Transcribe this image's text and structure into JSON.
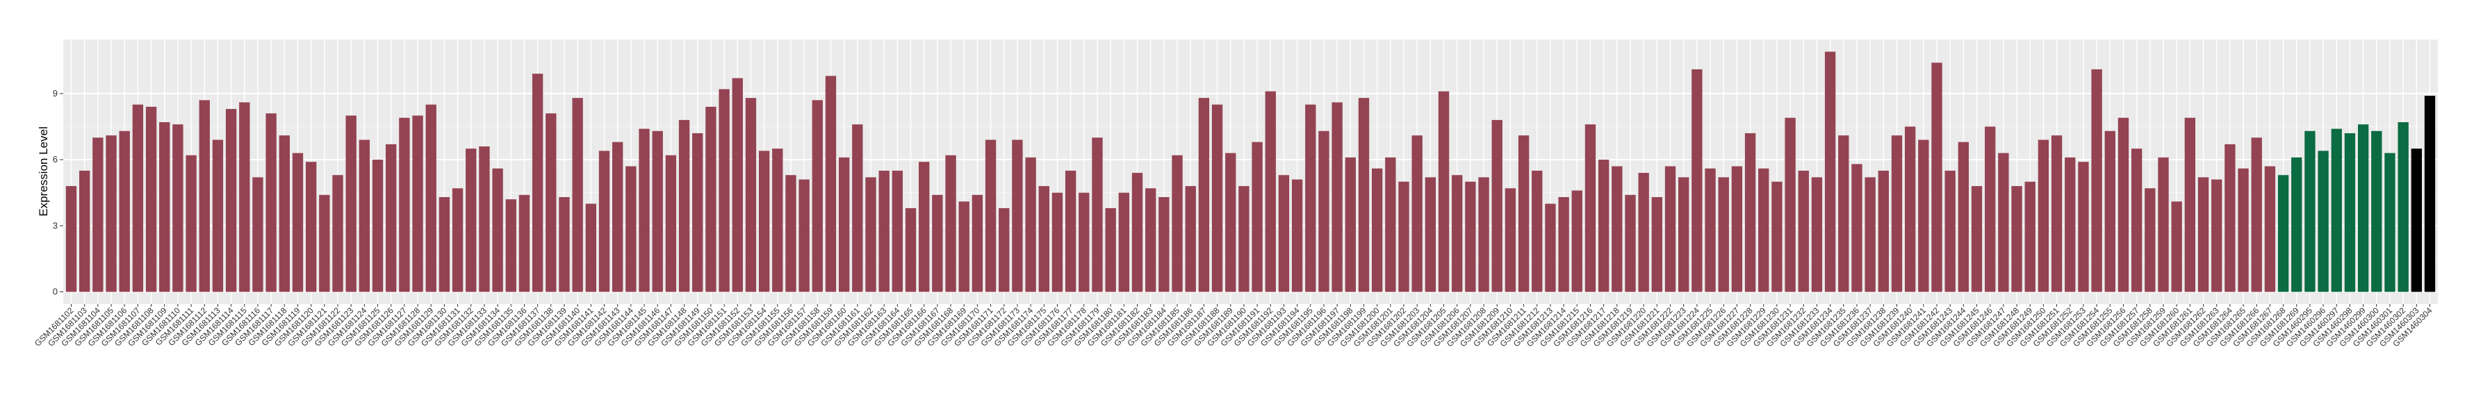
{
  "chart_data": {
    "type": "bar",
    "y_label": "Expression Level",
    "categories": [
      "GSM1681102",
      "GSM1681103",
      "GSM1681104",
      "GSM1681105",
      "GSM1681106",
      "GSM1681107",
      "GSM1681108",
      "GSM1681109",
      "GSM1681110",
      "GSM1681111",
      "GSM1681112",
      "GSM1681113",
      "GSM1681114",
      "GSM1681115",
      "GSM1681116",
      "GSM1681117",
      "GSM1681118",
      "GSM1681119",
      "GSM1681120",
      "GSM1681121",
      "GSM1681122",
      "GSM1681123",
      "GSM1681124",
      "GSM1681125",
      "GSM1681126",
      "GSM1681127",
      "GSM1681128",
      "GSM1681129",
      "GSM1681130",
      "GSM1681131",
      "GSM1681132",
      "GSM1681133",
      "GSM1681134",
      "GSM1681135",
      "GSM1681136",
      "GSM1681137",
      "GSM1681138",
      "GSM1681139",
      "GSM1681140",
      "GSM1681141",
      "GSM1681142",
      "GSM1681143",
      "GSM1681144",
      "GSM1681145",
      "GSM1681146",
      "GSM1681147",
      "GSM1681148",
      "GSM1681149",
      "GSM1681150",
      "GSM1681151",
      "GSM1681152",
      "GSM1681153",
      "GSM1681154",
      "GSM1681155",
      "GSM1681156",
      "GSM1681157",
      "GSM1681158",
      "GSM1681159",
      "GSM1681160",
      "GSM1681161",
      "GSM1681162",
      "GSM1681163",
      "GSM1681164",
      "GSM1681165",
      "GSM1681166",
      "GSM1681167",
      "GSM1681168",
      "GSM1681169",
      "GSM1681170",
      "GSM1681171",
      "GSM1681172",
      "GSM1681173",
      "GSM1681174",
      "GSM1681175",
      "GSM1681176",
      "GSM1681177",
      "GSM1681178",
      "GSM1681179",
      "GSM1681180",
      "GSM1681181",
      "GSM1681182",
      "GSM1681183",
      "GSM1681184",
      "GSM1681185",
      "GSM1681186",
      "GSM1681187",
      "GSM1681188",
      "GSM1681189",
      "GSM1681190",
      "GSM1681191",
      "GSM1681192",
      "GSM1681193",
      "GSM1681194",
      "GSM1681195",
      "GSM1681196",
      "GSM1681197",
      "GSM1681198",
      "GSM1681199",
      "GSM1681200",
      "GSM1681201",
      "GSM1681202",
      "GSM1681203",
      "GSM1681204",
      "GSM1681205",
      "GSM1681206",
      "GSM1681207",
      "GSM1681208",
      "GSM1681209",
      "GSM1681210",
      "GSM1681211",
      "GSM1681212",
      "GSM1681213",
      "GSM1681214",
      "GSM1681215",
      "GSM1681216",
      "GSM1681217",
      "GSM1681218",
      "GSM1681219",
      "GSM1681220",
      "GSM1681221",
      "GSM1681222",
      "GSM1681223",
      "GSM1681224",
      "GSM1681225",
      "GSM1681226",
      "GSM1681227",
      "GSM1681228",
      "GSM1681229",
      "GSM1681230",
      "GSM1681231",
      "GSM1681232",
      "GSM1681233",
      "GSM1681234",
      "GSM1681235",
      "GSM1681236",
      "GSM1681237",
      "GSM1681238",
      "GSM1681239",
      "GSM1681240",
      "GSM1681241",
      "GSM1681242",
      "GSM1681243",
      "GSM1681244",
      "GSM1681245",
      "GSM1681246",
      "GSM1681247",
      "GSM1681248",
      "GSM1681249",
      "GSM1681250",
      "GSM1681251",
      "GSM1681252",
      "GSM1681253",
      "GSM1681254",
      "GSM1681255",
      "GSM1681256",
      "GSM1681257",
      "GSM1681258",
      "GSM1681259",
      "GSM1681260",
      "GSM1681261",
      "GSM1681262",
      "GSM1681263",
      "GSM1681264",
      "GSM1681265",
      "GSM1681266",
      "GSM1681267",
      "GSM1681268",
      "GSM1681269",
      "GSM1460295",
      "GSM1460296",
      "GSM1460297",
      "GSM1460298",
      "GSM1460299",
      "GSM1460300",
      "GSM1460301",
      "GSM1460302",
      "GSM1460303",
      "GSM1460304"
    ],
    "values": [
      4.8,
      5.5,
      7.0,
      7.1,
      7.3,
      8.5,
      8.4,
      7.7,
      7.6,
      6.2,
      8.7,
      6.9,
      8.3,
      8.6,
      5.2,
      8.1,
      7.1,
      6.3,
      5.9,
      4.4,
      5.3,
      8.0,
      6.9,
      6.0,
      6.7,
      7.9,
      8.0,
      8.5,
      4.3,
      4.7,
      6.5,
      6.6,
      5.6,
      4.2,
      4.4,
      9.9,
      8.1,
      4.3,
      8.8,
      4.0,
      6.4,
      6.8,
      5.7,
      7.4,
      7.3,
      6.2,
      7.8,
      7.2,
      8.4,
      9.2,
      9.7,
      8.8,
      6.4,
      6.5,
      5.3,
      5.1,
      8.7,
      9.8,
      6.1,
      7.6,
      5.2,
      5.5,
      5.5,
      3.8,
      5.9,
      4.4,
      6.2,
      4.1,
      4.4,
      6.9,
      3.8,
      6.9,
      6.1,
      4.8,
      4.5,
      5.5,
      4.5,
      7.0,
      3.8,
      4.5,
      5.4,
      4.7,
      4.3,
      6.2,
      4.8,
      8.8,
      8.5,
      6.3,
      4.8,
      6.8,
      9.1,
      5.3,
      5.1,
      8.5,
      7.3,
      8.6,
      6.1,
      8.8,
      5.6,
      6.1,
      5.0,
      7.1,
      5.2,
      9.1,
      5.3,
      5.0,
      5.2,
      7.8,
      4.7,
      7.1,
      5.5,
      4.0,
      4.3,
      4.6,
      7.6,
      6.0,
      5.7,
      4.4,
      5.4,
      4.3,
      5.7,
      5.2,
      10.1,
      5.6,
      5.2,
      5.7,
      7.2,
      5.6,
      5.0,
      7.9,
      5.5,
      5.2,
      10.9,
      7.1,
      5.8,
      5.2,
      5.5,
      7.1,
      7.5,
      6.9,
      10.4,
      5.5,
      6.8,
      4.8,
      7.5,
      6.3,
      4.8,
      5.0,
      6.9,
      7.1,
      6.1,
      5.9,
      10.1,
      7.3,
      7.9,
      6.5,
      4.7,
      6.1,
      4.1,
      7.9,
      5.2,
      5.1,
      6.7,
      5.6,
      7.0,
      5.7,
      5.3,
      6.1,
      7.3,
      6.4,
      7.4,
      7.2,
      7.6,
      7.3,
      6.3,
      7.7,
      6.5,
      8.9
    ],
    "colors": [
      "#944352",
      "#944352",
      "#944352",
      "#944352",
      "#944352",
      "#944352",
      "#944352",
      "#944352",
      "#944352",
      "#944352",
      "#944352",
      "#944352",
      "#944352",
      "#944352",
      "#944352",
      "#944352",
      "#944352",
      "#944352",
      "#944352",
      "#944352",
      "#944352",
      "#944352",
      "#944352",
      "#944352",
      "#944352",
      "#944352",
      "#944352",
      "#944352",
      "#944352",
      "#944352",
      "#944352",
      "#944352",
      "#944352",
      "#944352",
      "#944352",
      "#944352",
      "#944352",
      "#944352",
      "#944352",
      "#944352",
      "#944352",
      "#944352",
      "#944352",
      "#944352",
      "#944352",
      "#944352",
      "#944352",
      "#944352",
      "#944352",
      "#944352",
      "#944352",
      "#944352",
      "#944352",
      "#944352",
      "#944352",
      "#944352",
      "#944352",
      "#944352",
      "#944352",
      "#944352",
      "#944352",
      "#944352",
      "#944352",
      "#944352",
      "#944352",
      "#944352",
      "#944352",
      "#944352",
      "#944352",
      "#944352",
      "#944352",
      "#944352",
      "#944352",
      "#944352",
      "#944352",
      "#944352",
      "#944352",
      "#944352",
      "#944352",
      "#944352",
      "#944352",
      "#944352",
      "#944352",
      "#944352",
      "#944352",
      "#944352",
      "#944352",
      "#944352",
      "#944352",
      "#944352",
      "#944352",
      "#944352",
      "#944352",
      "#944352",
      "#944352",
      "#944352",
      "#944352",
      "#944352",
      "#944352",
      "#944352",
      "#944352",
      "#944352",
      "#944352",
      "#944352",
      "#944352",
      "#944352",
      "#944352",
      "#944352",
      "#944352",
      "#944352",
      "#944352",
      "#944352",
      "#944352",
      "#944352",
      "#944352",
      "#944352",
      "#944352",
      "#944352",
      "#944352",
      "#944352",
      "#944352",
      "#944352",
      "#944352",
      "#944352",
      "#944352",
      "#944352",
      "#944352",
      "#944352",
      "#944352",
      "#944352",
      "#944352",
      "#944352",
      "#944352",
      "#944352",
      "#944352",
      "#944352",
      "#944352",
      "#944352",
      "#944352",
      "#944352",
      "#944352",
      "#944352",
      "#944352",
      "#944352",
      "#944352",
      "#944352",
      "#944352",
      "#944352",
      "#944352",
      "#944352",
      "#944352",
      "#944352",
      "#944352",
      "#944352",
      "#944352",
      "#944352",
      "#944352",
      "#944352",
      "#944352",
      "#944352",
      "#944352",
      "#944352",
      "#944352",
      "#944352",
      "#944352",
      "#944352",
      "#0b6b42",
      "#0b6b42",
      "#0b6b42",
      "#0b6b42",
      "#0b6b42",
      "#0b6b42",
      "#0b6b42",
      "#0b6b42",
      "#0b6b42",
      "#0b6b42"
    ],
    "ylim": [
      -0.55,
      11.45
    ],
    "yticks": [
      0,
      3,
      6,
      9
    ],
    "grid": true
  }
}
